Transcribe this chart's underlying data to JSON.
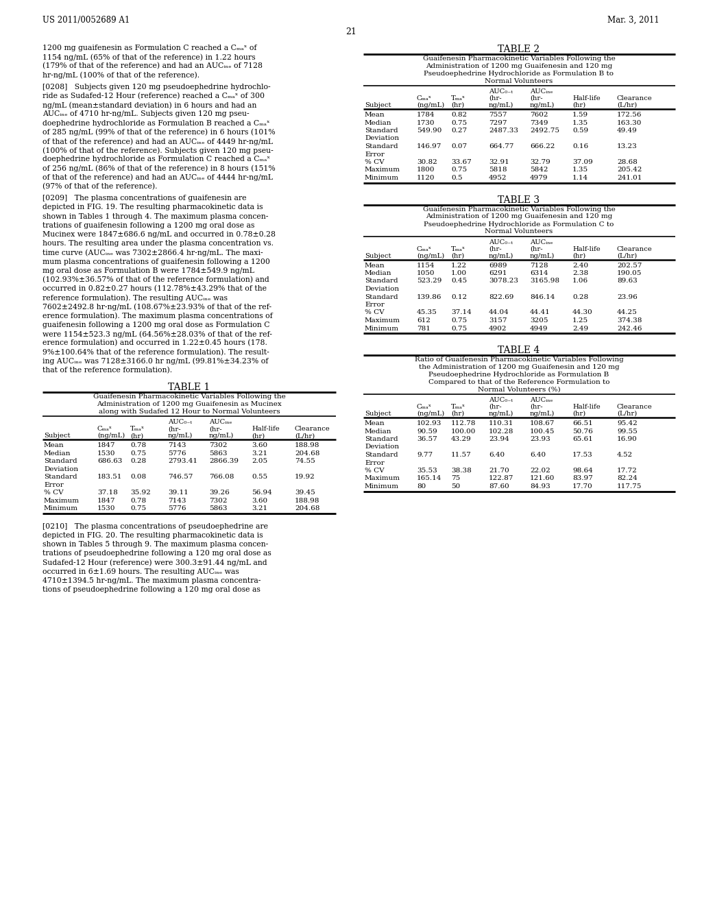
{
  "page_header_left": "US 2011/0052689 A1",
  "page_header_right": "Mar. 3, 2011",
  "page_number": "21",
  "background_color": "#ffffff",
  "left_col_paragraphs": [
    "1200 mg guaifenesin as Formulation C reached a C$_{max}$ of\n1154 ng/mL (65% of that of the reference) in 1.22 hours\n(179% of that of the reference) and had an AUC$_{inf}$ of 7128\nhr-ng/mL (100% of that of the reference).",
    "[0208]   Subjects given 120 mg pseudoephedrine hydrochlo-\nride as Sudafed-12 Hour (reference) reached a C$_{max}$ of 300\nng/mL (mean±standard deviation) in 6 hours and had an\nAUC$_{inf}$ of 4710 hr-ng/mL. Subjects given 120 mg pseu-\ndoephedrine hydrochloride as Formulation B reached a C$_{max}$\nof 285 ng/mL (99% of that of the reference) in 6 hours (101%\nof that of the reference) and had an AUC$_{inf}$ of 4449 hr-ng/mL\n(100% of that of the reference). Subjects given 120 mg pseu-\ndoephedrine hydrochloride as Formulation C reached a C$_{max}$\nof 256 ng/mL (86% of that of the reference) in 8 hours (151%\nof that of the reference) and had an AUC$_{inf}$ of 4444 hr-ng/mL\n(97% of that of the reference).",
    "[0209]   The plasma concentrations of guaifenesin are\ndepicted in FIG. 19. The resulting pharmacokinetic data is\nshown in Tables 1 through 4. The maximum plasma concen-\ntrations of guaifenesin following a 1200 mg oral dose as\nMucinex were 1847±686.6 ng/mL and occurred in 0.78±0.28\nhours. The resulting area under the plasma concentration vs.\ntime curve (AUC$_{inf}$ was 7302±2866.4 hr-ng/mL. The maxi-\nmum plasma concentrations of guaifenesin following a 1200\nmg oral dose as Formulation B were 1784±549.9 ng/mL\n(102.93%±36.57% of that of the reference formulation) and\noccurred in 0.82±0.27 hours (112.78%±43.29% that of the\nreference formulation). The resulting AUC$_{inf}$ was\n7602±2492.8 hr-ng/mL (108.67%±23.93% of that of the ref-\nerence formulation). The maximum plasma concentrations of\nguaifenesin following a 1200 mg oral dose as Formulation C\nwere 1154±523.3 ng/mL (64.56%±28.03% of that of the ref-\nerence formulation) and occurred in 1.22±0.45 hours (178.\n9%±100.64% that of the reference formulation). The result-\ning AUC$_{inf}$ was 7128±3166.0 hr ng/mL (99.81%±34.23% of\nthat of the reference formulation)."
  ],
  "bottom_para": "[0210]   The plasma concentrations of pseudoephedrine are\ndepicted in FIG. 20. The resulting pharmacokinetic data is\nshown in Tables 5 through 9. The maximum plasma concen-\ntrations of pseudoephedrine following a 120 mg oral dose as\nSudafed-12 Hour (reference) were 300.3±91.44 ng/mL and\noccurred in 6±1.69 hours. The resulting AUC$_{inf}$ was\n4710±1394.5 hr-ng/mL. The maximum plasma concentra-\ntions of pseudoephedrine following a 120 mg oral dose as",
  "table1_title": "TABLE 1",
  "table1_subtitle": [
    "Guaifenesin Pharmacokinetic Variables Following the",
    "Administration of 1200 mg Guaifenesin as Mucinex",
    "along with Sudafed 12 Hour to Normal Volunteers"
  ],
  "table1_rows": [
    [
      "Mean",
      "1847",
      "0.78",
      "7143",
      "7302",
      "3.60",
      "188.98"
    ],
    [
      "Median",
      "1530",
      "0.75",
      "5776",
      "5863",
      "3.21",
      "204.68"
    ],
    [
      "Standard",
      "686.63",
      "0.28",
      "2793.41",
      "2866.39",
      "2.05",
      "74.55"
    ],
    [
      "Deviation",
      "",
      "",
      "",
      "",
      "",
      ""
    ],
    [
      "Standard",
      "183.51",
      "0.08",
      "746.57",
      "766.08",
      "0.55",
      "19.92"
    ],
    [
      "Error",
      "",
      "",
      "",
      "",
      "",
      ""
    ],
    [
      "% CV",
      "37.18",
      "35.92",
      "39.11",
      "39.26",
      "56.94",
      "39.45"
    ],
    [
      "Maximum",
      "1847",
      "0.78",
      "7143",
      "7302",
      "3.60",
      "188.98"
    ],
    [
      "Minimum",
      "1530",
      "0.75",
      "5776",
      "5863",
      "3.21",
      "204.68"
    ]
  ],
  "table2_title": "TABLE 2",
  "table2_subtitle": [
    "Guaifenesin Pharmacokinetic Variables Following the",
    "Administration of 1200 mg Guaifenesin and 120 mg",
    "Pseudoephedrine Hydrochloride as Formulation B to",
    "Normal Volunteers"
  ],
  "table2_rows": [
    [
      "Mean",
      "1784",
      "0.82",
      "7557",
      "7602",
      "1.59",
      "172.56"
    ],
    [
      "Median",
      "1730",
      "0.75",
      "7297",
      "7349",
      "1.35",
      "163.30"
    ],
    [
      "Standard",
      "549.90",
      "0.27",
      "2487.33",
      "2492.75",
      "0.59",
      "49.49"
    ],
    [
      "Deviation",
      "",
      "",
      "",
      "",
      "",
      ""
    ],
    [
      "Standard",
      "146.97",
      "0.07",
      "664.77",
      "666.22",
      "0.16",
      "13.23"
    ],
    [
      "Error",
      "",
      "",
      "",
      "",
      "",
      ""
    ],
    [
      "% CV",
      "30.82",
      "33.67",
      "32.91",
      "32.79",
      "37.09",
      "28.68"
    ],
    [
      "Maximum",
      "1800",
      "0.75",
      "5818",
      "5842",
      "1.35",
      "205.42"
    ],
    [
      "Minimum",
      "1120",
      "0.5",
      "4952",
      "4979",
      "1.14",
      "241.01"
    ]
  ],
  "table3_title": "TABLE 3",
  "table3_subtitle": [
    "Guaifenesin Pharmacokinetic Variables Following the",
    "Administration of 1200 mg Guaifenesin and 120 mg",
    "Pseudoephedrine Hydrochloride as Formulation C to",
    "Normal Volunteers"
  ],
  "table3_rows": [
    [
      "Mean",
      "1154",
      "1.22",
      "6989",
      "7128",
      "2.40",
      "202.57"
    ],
    [
      "Median",
      "1050",
      "1.00",
      "6291",
      "6314",
      "2.38",
      "190.05"
    ],
    [
      "Standard",
      "523.29",
      "0.45",
      "3078.23",
      "3165.98",
      "1.06",
      "89.63"
    ],
    [
      "Deviation",
      "",
      "",
      "",
      "",
      "",
      ""
    ],
    [
      "Standard",
      "139.86",
      "0.12",
      "822.69",
      "846.14",
      "0.28",
      "23.96"
    ],
    [
      "Error",
      "",
      "",
      "",
      "",
      "",
      ""
    ],
    [
      "% CV",
      "45.35",
      "37.14",
      "44.04",
      "44.41",
      "44.30",
      "44.25"
    ],
    [
      "Maximum",
      "612",
      "0.75",
      "3157",
      "3205",
      "1.25",
      "374.38"
    ],
    [
      "Minimum",
      "781",
      "0.75",
      "4902",
      "4949",
      "2.49",
      "242.46"
    ]
  ],
  "table4_title": "TABLE 4",
  "table4_subtitle": [
    "Ratio of Guaifenesin Pharmacokinetic Variables Following",
    "the Administration of 1200 mg Guaifenesin and 120 mg",
    "Pseudoephedrine Hydrochloride as Formulation B",
    "Compared to that of the Reference Formulation to",
    "Normal Volunteers (%)"
  ],
  "table4_rows": [
    [
      "Mean",
      "102.93",
      "112.78",
      "110.31",
      "108.67",
      "66.51",
      "95.42"
    ],
    [
      "Median",
      "90.59",
      "100.00",
      "102.28",
      "100.45",
      "50.76",
      "99.55"
    ],
    [
      "Standard",
      "36.57",
      "43.29",
      "23.94",
      "23.93",
      "65.61",
      "16.90"
    ],
    [
      "Deviation",
      "",
      "",
      "",
      "",
      "",
      ""
    ],
    [
      "Standard",
      "9.77",
      "11.57",
      "6.40",
      "6.40",
      "17.53",
      "4.52"
    ],
    [
      "Error",
      "",
      "",
      "",
      "",
      "",
      ""
    ],
    [
      "% CV",
      "35.53",
      "38.38",
      "21.70",
      "22.02",
      "98.64",
      "17.72"
    ],
    [
      "Maximum",
      "165.14",
      "75",
      "122.87",
      "121.60",
      "83.97",
      "82.24"
    ],
    [
      "Minimum",
      "80",
      "50",
      "87.60",
      "84.93",
      "17.70",
      "117.75"
    ]
  ]
}
